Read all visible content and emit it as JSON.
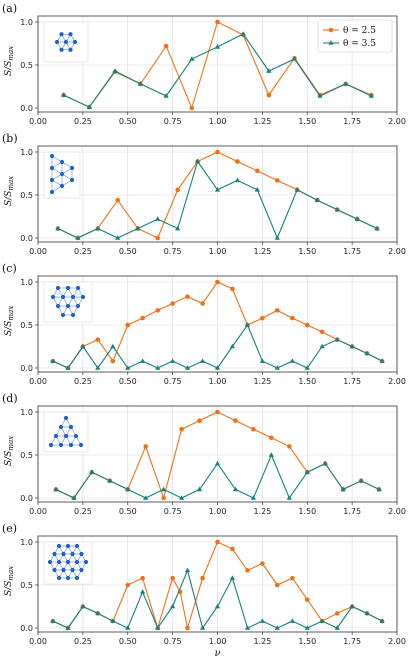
{
  "figure": {
    "xlabel": "ν",
    "ylabel": "S/S",
    "ylabel_sub": "max",
    "colors": {
      "theta25": "#f07017",
      "theta35": "#18807c",
      "lattice": "#1f5fc8",
      "grid": "#d8d8d8"
    }
  },
  "legend": {
    "entries": [
      {
        "label": "θ = 2.5",
        "color": "#f07017",
        "marker": "circle"
      },
      {
        "label": "θ = 3.5",
        "color": "#18807c",
        "marker": "triangle"
      }
    ],
    "placement": "top-right of panel (a)"
  },
  "chart_data": [
    {
      "type": "line",
      "panel_label": "(a)",
      "inset": "hexagon-7-sites",
      "xlim": [
        0,
        2
      ],
      "ylim": [
        0,
        1
      ],
      "xticks": [
        "0.00",
        "0.25",
        "0.50",
        "0.75",
        "1.00",
        "1.25",
        "1.50",
        "1.75",
        "2.00"
      ],
      "yticks": [
        "0.0",
        "0.5",
        "1.0"
      ],
      "grid": true,
      "series": [
        {
          "name": "θ = 2.5",
          "x": [
            0.143,
            0.286,
            0.429,
            0.571,
            0.714,
            0.857,
            1.0,
            1.143,
            1.286,
            1.429,
            1.571,
            1.714,
            1.857
          ],
          "y": [
            0.15,
            0.01,
            0.42,
            0.28,
            0.72,
            0.0,
            1.0,
            0.85,
            0.15,
            0.58,
            0.15,
            0.28,
            0.15
          ]
        },
        {
          "name": "θ = 3.5",
          "x": [
            0.143,
            0.286,
            0.429,
            0.571,
            0.714,
            0.857,
            1.0,
            1.143,
            1.286,
            1.429,
            1.571,
            1.714,
            1.857
          ],
          "y": [
            0.15,
            0.01,
            0.43,
            0.28,
            0.14,
            0.57,
            0.71,
            0.86,
            0.43,
            0.57,
            0.14,
            0.28,
            0.14
          ]
        }
      ]
    },
    {
      "type": "line",
      "panel_label": "(b)",
      "inset": "triangular-9-sites",
      "xlim": [
        0,
        2
      ],
      "ylim": [
        0,
        1
      ],
      "xticks": [
        "0.00",
        "0.25",
        "0.50",
        "0.75",
        "1.00",
        "1.25",
        "1.50",
        "1.75",
        "2.00"
      ],
      "yticks": [
        "0.0",
        "0.5",
        "1.0"
      ],
      "grid": true,
      "series": [
        {
          "name": "θ = 2.5",
          "x": [
            0.111,
            0.222,
            0.333,
            0.444,
            0.556,
            0.667,
            0.778,
            0.889,
            1.0,
            1.111,
            1.222,
            1.333,
            1.444,
            1.556,
            1.667,
            1.778,
            1.889
          ],
          "y": [
            0.11,
            0.0,
            0.11,
            0.44,
            0.11,
            0.0,
            0.56,
            0.89,
            1.0,
            0.89,
            0.78,
            0.67,
            0.56,
            0.44,
            0.33,
            0.22,
            0.11
          ]
        },
        {
          "name": "θ = 3.5",
          "x": [
            0.111,
            0.222,
            0.333,
            0.444,
            0.556,
            0.667,
            0.778,
            0.889,
            1.0,
            1.111,
            1.222,
            1.333,
            1.444,
            1.556,
            1.667,
            1.778,
            1.889
          ],
          "y": [
            0.11,
            0.0,
            0.11,
            0.0,
            0.11,
            0.22,
            0.11,
            0.89,
            0.56,
            0.67,
            0.56,
            0.0,
            0.56,
            0.44,
            0.33,
            0.22,
            0.11
          ]
        }
      ]
    },
    {
      "type": "line",
      "panel_label": "(c)",
      "inset": "triangular-12-sites",
      "xlim": [
        0,
        2
      ],
      "ylim": [
        0,
        1
      ],
      "xticks": [
        "0.00",
        "0.25",
        "0.50",
        "0.75",
        "1.00",
        "1.25",
        "1.50",
        "1.75",
        "2.00"
      ],
      "yticks": [
        "0.0",
        "0.5",
        "1.0"
      ],
      "grid": true,
      "series": [
        {
          "name": "θ = 2.5",
          "x": [
            0.083,
            0.167,
            0.25,
            0.333,
            0.417,
            0.5,
            0.583,
            0.667,
            0.75,
            0.833,
            0.917,
            1.0,
            1.083,
            1.167,
            1.25,
            1.333,
            1.417,
            1.5,
            1.583,
            1.667,
            1.75,
            1.833,
            1.917
          ],
          "y": [
            0.08,
            0.0,
            0.25,
            0.33,
            0.08,
            0.5,
            0.58,
            0.67,
            0.75,
            0.83,
            0.75,
            1.0,
            0.92,
            0.5,
            0.58,
            0.67,
            0.58,
            0.5,
            0.42,
            0.33,
            0.25,
            0.17,
            0.08
          ]
        },
        {
          "name": "θ = 3.5",
          "x": [
            0.083,
            0.167,
            0.25,
            0.333,
            0.417,
            0.5,
            0.583,
            0.667,
            0.75,
            0.833,
            0.917,
            1.0,
            1.083,
            1.167,
            1.25,
            1.333,
            1.417,
            1.5,
            1.583,
            1.667,
            1.75,
            1.833,
            1.917
          ],
          "y": [
            0.08,
            0.0,
            0.25,
            0.0,
            0.25,
            0.0,
            0.08,
            0.0,
            0.08,
            0.0,
            0.08,
            0.0,
            0.25,
            0.5,
            0.08,
            0.0,
            0.08,
            0.0,
            0.25,
            0.33,
            0.25,
            0.17,
            0.08
          ]
        }
      ]
    },
    {
      "type": "line",
      "panel_label": "(d)",
      "inset": "triangle-10-sites",
      "xlim": [
        0,
        2
      ],
      "ylim": [
        0,
        1
      ],
      "xticks": [
        "0.00",
        "0.25",
        "0.50",
        "0.75",
        "1.00",
        "1.25",
        "1.50",
        "1.75",
        "2.00"
      ],
      "yticks": [
        "0.0",
        "0.5",
        "1.0"
      ],
      "grid": true,
      "series": [
        {
          "name": "θ = 2.5",
          "x": [
            0.1,
            0.2,
            0.3,
            0.4,
            0.5,
            0.6,
            0.7,
            0.8,
            0.9,
            1.0,
            1.1,
            1.2,
            1.3,
            1.4,
            1.5,
            1.6,
            1.7,
            1.8,
            1.9
          ],
          "y": [
            0.1,
            0.0,
            0.3,
            0.2,
            0.1,
            0.6,
            0.0,
            0.8,
            0.9,
            1.0,
            0.9,
            0.8,
            0.7,
            0.6,
            0.3,
            0.4,
            0.1,
            0.2,
            0.1
          ]
        },
        {
          "name": "θ = 3.5",
          "x": [
            0.1,
            0.2,
            0.3,
            0.4,
            0.5,
            0.6,
            0.7,
            0.8,
            0.9,
            1.0,
            1.1,
            1.2,
            1.3,
            1.4,
            1.5,
            1.6,
            1.7,
            1.8,
            1.9
          ],
          "y": [
            0.1,
            0.0,
            0.3,
            0.2,
            0.1,
            0.0,
            0.1,
            0.0,
            0.1,
            0.4,
            0.1,
            0.0,
            0.5,
            0.0,
            0.3,
            0.4,
            0.1,
            0.2,
            0.1
          ]
        }
      ]
    },
    {
      "type": "line",
      "panel_label": "(e)",
      "inset": "triangular-15-sites",
      "xlim": [
        0,
        2
      ],
      "ylim": [
        0,
        1
      ],
      "xticks": [
        "0.00",
        "0.25",
        "0.50",
        "0.75",
        "1.00",
        "1.25",
        "1.50",
        "1.75",
        "2.00"
      ],
      "yticks": [
        "0.0",
        "0.5",
        "1.0"
      ],
      "grid": true,
      "series": [
        {
          "name": "θ = 2.5",
          "x": [
            0.083,
            0.167,
            0.25,
            0.333,
            0.417,
            0.5,
            0.583,
            0.667,
            0.75,
            0.792,
            0.833,
            0.917,
            1.0,
            1.083,
            1.167,
            1.25,
            1.333,
            1.417,
            1.5,
            1.583,
            1.667,
            1.75,
            1.833,
            1.917
          ],
          "y": [
            0.08,
            0.0,
            0.25,
            0.17,
            0.08,
            0.5,
            0.58,
            0.0,
            0.58,
            0.42,
            0.0,
            0.58,
            1.0,
            0.92,
            0.67,
            0.75,
            0.5,
            0.58,
            0.33,
            0.08,
            0.17,
            0.25,
            0.17,
            0.08
          ]
        },
        {
          "name": "θ = 3.5",
          "x": [
            0.083,
            0.167,
            0.25,
            0.333,
            0.417,
            0.5,
            0.583,
            0.667,
            0.75,
            0.833,
            0.917,
            1.0,
            1.083,
            1.167,
            1.25,
            1.333,
            1.417,
            1.5,
            1.583,
            1.667,
            1.75,
            1.833,
            1.917
          ],
          "y": [
            0.08,
            0.0,
            0.25,
            0.17,
            0.08,
            0.0,
            0.42,
            0.0,
            0.25,
            0.67,
            0.0,
            0.25,
            0.58,
            0.0,
            0.08,
            0.0,
            0.08,
            0.0,
            0.08,
            0.0,
            0.25,
            0.17,
            0.08
          ]
        }
      ]
    }
  ]
}
